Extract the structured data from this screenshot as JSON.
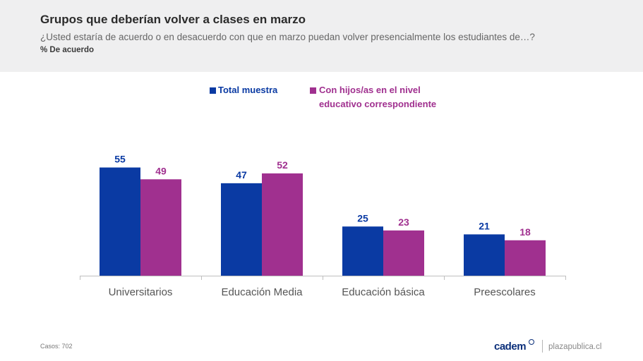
{
  "header": {
    "title": "Grupos que deberían volver a clases en marzo",
    "subtitle": "¿Usted estaría de acuerdo o en desacuerdo con que en marzo puedan volver presencialmente los estudiantes de…?",
    "unit_label": "% De acuerdo"
  },
  "legend": {
    "items": [
      {
        "line1": "Total muestra",
        "line2": "",
        "color": "#0a3aa3"
      },
      {
        "line1": "Con hijos/as en el nivel",
        "line2": "educativo correspondiente",
        "color": "#a0308f"
      }
    ]
  },
  "chart_data": {
    "type": "bar",
    "categories": [
      "Universitarios",
      "Educación Media",
      "Educación básica",
      "Preescolares"
    ],
    "series": [
      {
        "name": "Total muestra",
        "values": [
          55,
          47,
          25,
          21
        ],
        "color": "#0a3aa3"
      },
      {
        "name": "Con hijos/as en el nivel educativo correspondiente",
        "values": [
          49,
          52,
          23,
          18
        ],
        "color": "#a0308f"
      }
    ],
    "title": "",
    "xlabel": "",
    "ylabel": "",
    "ylim": [
      0,
      60
    ],
    "grid": false,
    "legend_position": "top-center",
    "data_labels": true
  },
  "footer": {
    "note": "Casos: 702",
    "brand": "cadem",
    "site": "plazapublica.cl"
  }
}
